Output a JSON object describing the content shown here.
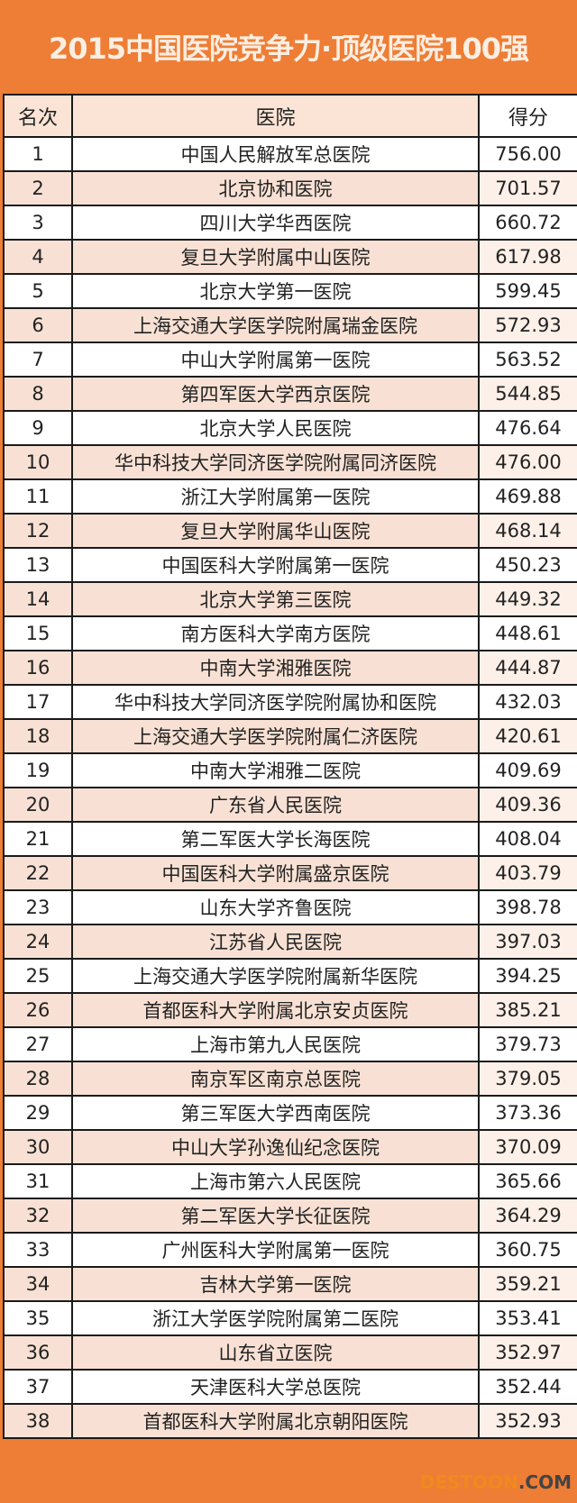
{
  "title": "2015中国医院竞争力·顶级医院100强",
  "headers": {
    "rank": "名次",
    "hospital": "医院",
    "score": "得分"
  },
  "colors": {
    "brand": "#ee7d35",
    "row_alt": "#f8e1d4"
  },
  "rows": [
    {
      "rank": "1",
      "hospital": "中国人民解放军总医院",
      "score": "756.00"
    },
    {
      "rank": "2",
      "hospital": "北京协和医院",
      "score": "701.57"
    },
    {
      "rank": "3",
      "hospital": "四川大学华西医院",
      "score": "660.72"
    },
    {
      "rank": "4",
      "hospital": "复旦大学附属中山医院",
      "score": "617.98"
    },
    {
      "rank": "5",
      "hospital": "北京大学第一医院",
      "score": "599.45"
    },
    {
      "rank": "6",
      "hospital": "上海交通大学医学院附属瑞金医院",
      "score": "572.93"
    },
    {
      "rank": "7",
      "hospital": "中山大学附属第一医院",
      "score": "563.52"
    },
    {
      "rank": "8",
      "hospital": "第四军医大学西京医院",
      "score": "544.85"
    },
    {
      "rank": "9",
      "hospital": "北京大学人民医院",
      "score": "476.64"
    },
    {
      "rank": "10",
      "hospital": "华中科技大学同济医学院附属同济医院",
      "score": "476.00"
    },
    {
      "rank": "11",
      "hospital": "浙江大学附属第一医院",
      "score": "469.88"
    },
    {
      "rank": "12",
      "hospital": "复旦大学附属华山医院",
      "score": "468.14"
    },
    {
      "rank": "13",
      "hospital": "中国医科大学附属第一医院",
      "score": "450.23"
    },
    {
      "rank": "14",
      "hospital": "北京大学第三医院",
      "score": "449.32"
    },
    {
      "rank": "15",
      "hospital": "南方医科大学南方医院",
      "score": "448.61"
    },
    {
      "rank": "16",
      "hospital": "中南大学湘雅医院",
      "score": "444.87"
    },
    {
      "rank": "17",
      "hospital": "华中科技大学同济医学院附属协和医院",
      "score": "432.03"
    },
    {
      "rank": "18",
      "hospital": "上海交通大学医学院附属仁济医院",
      "score": "420.61"
    },
    {
      "rank": "19",
      "hospital": "中南大学湘雅二医院",
      "score": "409.69"
    },
    {
      "rank": "20",
      "hospital": "广东省人民医院",
      "score": "409.36"
    },
    {
      "rank": "21",
      "hospital": "第二军医大学长海医院",
      "score": "408.04"
    },
    {
      "rank": "22",
      "hospital": "中国医科大学附属盛京医院",
      "score": "403.79"
    },
    {
      "rank": "23",
      "hospital": "山东大学齐鲁医院",
      "score": "398.78"
    },
    {
      "rank": "24",
      "hospital": "江苏省人民医院",
      "score": "397.03"
    },
    {
      "rank": "25",
      "hospital": "上海交通大学医学院附属新华医院",
      "score": "394.25"
    },
    {
      "rank": "26",
      "hospital": "首都医科大学附属北京安贞医院",
      "score": "385.21"
    },
    {
      "rank": "27",
      "hospital": "上海市第九人民医院",
      "score": "379.73"
    },
    {
      "rank": "28",
      "hospital": "南京军区南京总医院",
      "score": "379.05"
    },
    {
      "rank": "29",
      "hospital": "第三军医大学西南医院",
      "score": "373.36"
    },
    {
      "rank": "30",
      "hospital": "中山大学孙逸仙纪念医院",
      "score": "370.09"
    },
    {
      "rank": "31",
      "hospital": "上海市第六人民医院",
      "score": "365.66"
    },
    {
      "rank": "32",
      "hospital": "第二军医大学长征医院",
      "score": "364.29"
    },
    {
      "rank": "33",
      "hospital": "广州医科大学附属第一医院",
      "score": "360.75"
    },
    {
      "rank": "34",
      "hospital": "吉林大学第一医院",
      "score": "359.21"
    },
    {
      "rank": "35",
      "hospital": "浙江大学医学院附属第二医院",
      "score": "353.41"
    },
    {
      "rank": "36",
      "hospital": "山东省立医院",
      "score": "352.97"
    },
    {
      "rank": "37",
      "hospital": "天津医科大学总医院",
      "score": "352.44"
    },
    {
      "rank": "38",
      "hospital": "首都医科大学附属北京朝阳医院",
      "score": "352.93"
    }
  ],
  "watermark": {
    "part1": "DESTOON",
    "part2": ".COM"
  }
}
